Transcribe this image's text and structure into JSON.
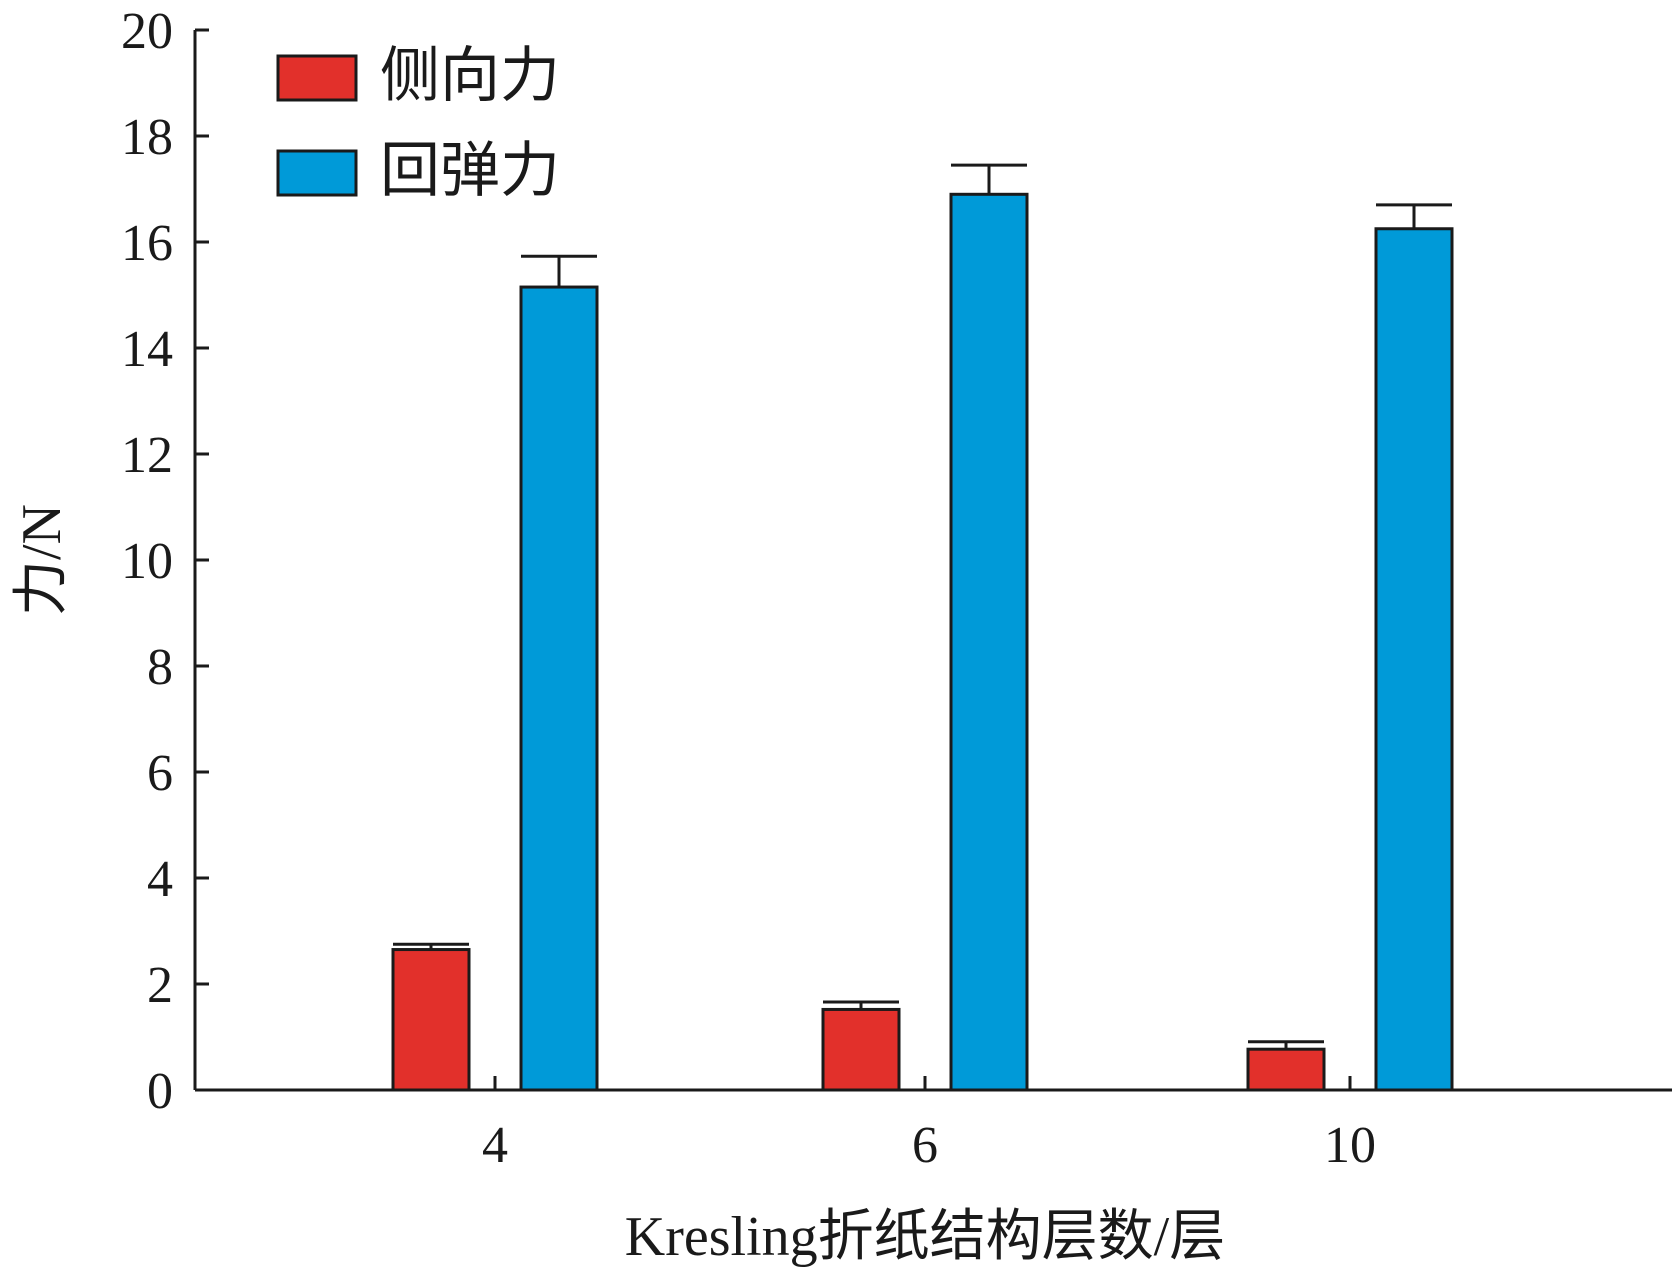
{
  "chart_data": {
    "type": "bar",
    "categories": [
      "4",
      "6",
      "10"
    ],
    "series": [
      {
        "name": "侧向力",
        "color": "#e2302b",
        "values": [
          2.65,
          1.52,
          0.77
        ],
        "errors": [
          0.1,
          0.14,
          0.14
        ]
      },
      {
        "name": "回弹力",
        "color": "#009ad8",
        "values": [
          15.15,
          16.9,
          16.25
        ],
        "errors": [
          0.58,
          0.55,
          0.45
        ]
      }
    ],
    "xlabel": "Kresling折纸结构层数/层",
    "ylabel": "力/N",
    "ylim": [
      0,
      20
    ],
    "yticks": [
      0,
      2,
      4,
      6,
      8,
      10,
      12,
      14,
      16,
      18,
      20
    ],
    "grid": false,
    "legend_position": "top-left"
  }
}
